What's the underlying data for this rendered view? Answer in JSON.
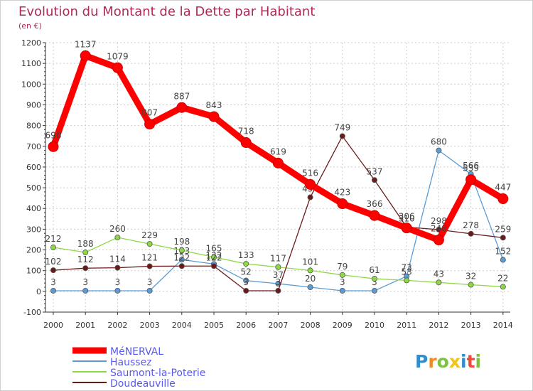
{
  "chart_data": {
    "type": "line",
    "title": "Evolution du Montant de la Dette par Habitant",
    "subtitle": "(en €)",
    "xlabel": "",
    "ylabel": "(en €)",
    "categories": [
      "2000",
      "2001",
      "2002",
      "2003",
      "2004",
      "2005",
      "2006",
      "2007",
      "2008",
      "2009",
      "2010",
      "2011",
      "2012",
      "2013",
      "2014"
    ],
    "ylim": [
      -100,
      1200
    ],
    "yticks": [
      -100,
      0,
      100,
      200,
      300,
      400,
      500,
      600,
      700,
      800,
      900,
      1000,
      1100,
      1200
    ],
    "grid": true,
    "legend_position": "bottom-left",
    "series": [
      {
        "name": "MéNERVAL",
        "color": "#ff0000",
        "values": [
          698,
          1137,
          1079,
          807,
          887,
          843,
          718,
          619,
          516,
          423,
          366,
          306,
          248,
          539,
          447
        ]
      },
      {
        "name": "Haussez",
        "color": "#5c9cd4",
        "values": [
          3,
          3,
          3,
          3,
          153,
          132,
          52,
          37,
          20,
          3,
          3,
          73,
          680,
          566,
          152
        ]
      },
      {
        "name": "Saumont-la-Poterie",
        "color": "#8fd845",
        "values": [
          212,
          188,
          260,
          229,
          198,
          165,
          133,
          117,
          101,
          79,
          61,
          53,
          43,
          32,
          22
        ]
      },
      {
        "name": "Doudeauville",
        "color": "#6b1a1a",
        "values": [
          102,
          112,
          114,
          121,
          122,
          122,
          3,
          3,
          454,
          749,
          537,
          310,
          298,
          278,
          259
        ]
      }
    ]
  },
  "logo": {
    "text": "Proxiti"
  }
}
